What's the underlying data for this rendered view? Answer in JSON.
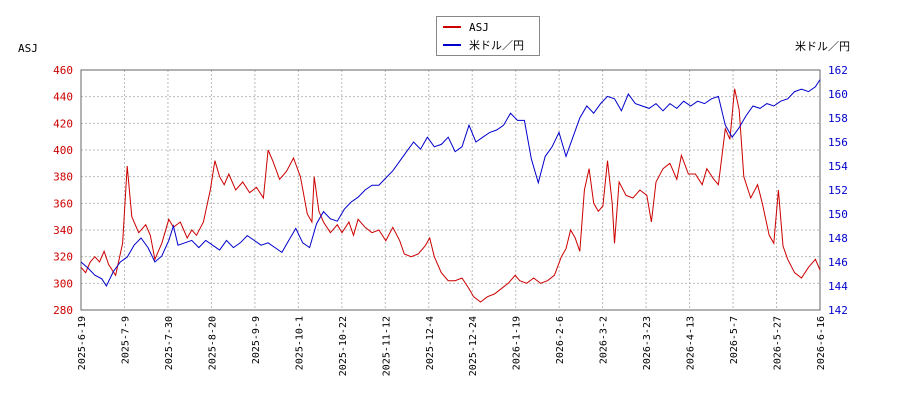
{
  "chart_data": {
    "type": "line",
    "left_axis_title": "ASJ",
    "right_axis_title": "米ドル／円",
    "left_ylim": [
      280,
      460
    ],
    "left_yticks": [
      280,
      300,
      320,
      340,
      360,
      380,
      400,
      420,
      440,
      460
    ],
    "right_ylim": [
      142,
      162
    ],
    "right_yticks": [
      142,
      144,
      146,
      148,
      150,
      152,
      154,
      156,
      158,
      160,
      162
    ],
    "x_ticks": [
      "2025-6-19",
      "2025-7-9",
      "2025-7-30",
      "2025-8-20",
      "2025-9-9",
      "2025-10-1",
      "2025-10-22",
      "2025-11-12",
      "2025-12-4",
      "2025-12-24",
      "2026-1-19",
      "2026-2-6",
      "2026-3-2",
      "2026-3-23",
      "2026-4-13",
      "2026-5-7",
      "2026-5-27",
      "2026-6-16"
    ],
    "grid": true,
    "legend_position": "top-center",
    "series": [
      {
        "name": "ASJ",
        "axis": "left",
        "color": "#cc0000",
        "points": [
          [
            0,
            312
          ],
          [
            0.2,
            308
          ],
          [
            0.4,
            316
          ],
          [
            0.6,
            320
          ],
          [
            0.8,
            316
          ],
          [
            1.0,
            324
          ],
          [
            1.2,
            314
          ],
          [
            1.5,
            306
          ],
          [
            1.8,
            330
          ],
          [
            2.0,
            388
          ],
          [
            2.2,
            350
          ],
          [
            2.5,
            338
          ],
          [
            2.8,
            344
          ],
          [
            3.0,
            336
          ],
          [
            3.2,
            318
          ],
          [
            3.5,
            330
          ],
          [
            3.8,
            348
          ],
          [
            4.0,
            342
          ],
          [
            4.3,
            346
          ],
          [
            4.6,
            334
          ],
          [
            4.8,
            340
          ],
          [
            5.0,
            336
          ],
          [
            5.3,
            346
          ],
          [
            5.6,
            370
          ],
          [
            5.8,
            392
          ],
          [
            6.0,
            380
          ],
          [
            6.2,
            374
          ],
          [
            6.4,
            382
          ],
          [
            6.7,
            370
          ],
          [
            7.0,
            376
          ],
          [
            7.3,
            368
          ],
          [
            7.6,
            372
          ],
          [
            7.9,
            364
          ],
          [
            8.1,
            400
          ],
          [
            8.3,
            392
          ],
          [
            8.6,
            378
          ],
          [
            8.9,
            384
          ],
          [
            9.2,
            394
          ],
          [
            9.5,
            380
          ],
          [
            9.8,
            352
          ],
          [
            10.0,
            346
          ],
          [
            10.1,
            380
          ],
          [
            10.3,
            354
          ],
          [
            10.5,
            346
          ],
          [
            10.8,
            338
          ],
          [
            11.1,
            344
          ],
          [
            11.3,
            338
          ],
          [
            11.6,
            346
          ],
          [
            11.8,
            336
          ],
          [
            12.0,
            348
          ],
          [
            12.3,
            342
          ],
          [
            12.6,
            338
          ],
          [
            12.9,
            340
          ],
          [
            13.2,
            332
          ],
          [
            13.5,
            342
          ],
          [
            13.8,
            332
          ],
          [
            14.0,
            322
          ],
          [
            14.3,
            320
          ],
          [
            14.6,
            322
          ],
          [
            14.9,
            328
          ],
          [
            15.1,
            334
          ],
          [
            15.3,
            320
          ],
          [
            15.6,
            308
          ],
          [
            15.9,
            302
          ],
          [
            16.2,
            302
          ],
          [
            16.5,
            304
          ],
          [
            16.8,
            296
          ],
          [
            17.0,
            290
          ],
          [
            17.3,
            286
          ],
          [
            17.6,
            290
          ],
          [
            17.9,
            292
          ],
          [
            18.2,
            296
          ],
          [
            18.5,
            300
          ],
          [
            18.8,
            306
          ],
          [
            19.0,
            302
          ],
          [
            19.3,
            300
          ],
          [
            19.6,
            304
          ],
          [
            19.9,
            300
          ],
          [
            20.2,
            302
          ],
          [
            20.5,
            306
          ],
          [
            20.8,
            320
          ],
          [
            21.0,
            326
          ],
          [
            21.2,
            340
          ],
          [
            21.4,
            334
          ],
          [
            21.6,
            324
          ],
          [
            21.8,
            370
          ],
          [
            22.0,
            386
          ],
          [
            22.2,
            360
          ],
          [
            22.4,
            354
          ],
          [
            22.6,
            358
          ],
          [
            22.8,
            392
          ],
          [
            23.0,
            360
          ],
          [
            23.1,
            330
          ],
          [
            23.3,
            376
          ],
          [
            23.6,
            366
          ],
          [
            23.9,
            364
          ],
          [
            24.2,
            370
          ],
          [
            24.5,
            366
          ],
          [
            24.7,
            346
          ],
          [
            24.9,
            376
          ],
          [
            25.2,
            386
          ],
          [
            25.5,
            390
          ],
          [
            25.8,
            378
          ],
          [
            26.0,
            396
          ],
          [
            26.3,
            382
          ],
          [
            26.6,
            382
          ],
          [
            26.9,
            374
          ],
          [
            27.1,
            386
          ],
          [
            27.4,
            378
          ],
          [
            27.6,
            374
          ],
          [
            27.9,
            416
          ],
          [
            28.1,
            408
          ],
          [
            28.3,
            446
          ],
          [
            28.5,
            430
          ],
          [
            28.7,
            380
          ],
          [
            29.0,
            364
          ],
          [
            29.3,
            374
          ],
          [
            29.5,
            360
          ],
          [
            29.8,
            336
          ],
          [
            30.0,
            330
          ],
          [
            30.2,
            370
          ],
          [
            30.4,
            328
          ],
          [
            30.6,
            318
          ],
          [
            30.9,
            308
          ],
          [
            31.2,
            304
          ],
          [
            31.5,
            312
          ],
          [
            31.8,
            318
          ],
          [
            32.0,
            310
          ]
        ]
      },
      {
        "name": "米ドル／円",
        "axis": "right",
        "color": "#0000cc",
        "points": [
          [
            0,
            146.0
          ],
          [
            0.3,
            145.5
          ],
          [
            0.6,
            144.9
          ],
          [
            0.9,
            144.6
          ],
          [
            1.1,
            144.0
          ],
          [
            1.4,
            145.2
          ],
          [
            1.7,
            146.0
          ],
          [
            2.0,
            146.4
          ],
          [
            2.3,
            147.4
          ],
          [
            2.6,
            148.0
          ],
          [
            2.9,
            147.2
          ],
          [
            3.2,
            146.0
          ],
          [
            3.5,
            146.5
          ],
          [
            3.8,
            147.8
          ],
          [
            4.0,
            149.0
          ],
          [
            4.2,
            147.4
          ],
          [
            4.5,
            147.6
          ],
          [
            4.8,
            147.8
          ],
          [
            5.1,
            147.2
          ],
          [
            5.4,
            147.8
          ],
          [
            5.7,
            147.4
          ],
          [
            6.0,
            147.0
          ],
          [
            6.3,
            147.8
          ],
          [
            6.6,
            147.2
          ],
          [
            6.9,
            147.6
          ],
          [
            7.2,
            148.2
          ],
          [
            7.5,
            147.8
          ],
          [
            7.8,
            147.4
          ],
          [
            8.1,
            147.6
          ],
          [
            8.4,
            147.2
          ],
          [
            8.7,
            146.8
          ],
          [
            9.0,
            147.8
          ],
          [
            9.3,
            148.8
          ],
          [
            9.6,
            147.6
          ],
          [
            9.9,
            147.2
          ],
          [
            10.2,
            149.2
          ],
          [
            10.5,
            150.2
          ],
          [
            10.8,
            149.6
          ],
          [
            11.1,
            149.4
          ],
          [
            11.4,
            150.4
          ],
          [
            11.7,
            151.0
          ],
          [
            12.0,
            151.4
          ],
          [
            12.3,
            152.0
          ],
          [
            12.6,
            152.4
          ],
          [
            12.9,
            152.4
          ],
          [
            13.2,
            153.0
          ],
          [
            13.5,
            153.6
          ],
          [
            13.8,
            154.4
          ],
          [
            14.1,
            155.2
          ],
          [
            14.4,
            156.0
          ],
          [
            14.7,
            155.4
          ],
          [
            15.0,
            156.4
          ],
          [
            15.3,
            155.6
          ],
          [
            15.6,
            155.8
          ],
          [
            15.9,
            156.4
          ],
          [
            16.2,
            155.2
          ],
          [
            16.5,
            155.6
          ],
          [
            16.8,
            157.4
          ],
          [
            17.1,
            156.0
          ],
          [
            17.4,
            156.4
          ],
          [
            17.7,
            156.8
          ],
          [
            18.0,
            157.0
          ],
          [
            18.3,
            157.4
          ],
          [
            18.6,
            158.4
          ],
          [
            18.9,
            157.8
          ],
          [
            19.2,
            157.8
          ],
          [
            19.5,
            154.6
          ],
          [
            19.8,
            152.6
          ],
          [
            20.1,
            154.8
          ],
          [
            20.4,
            155.6
          ],
          [
            20.7,
            156.8
          ],
          [
            21.0,
            154.8
          ],
          [
            21.3,
            156.4
          ],
          [
            21.6,
            158.0
          ],
          [
            21.9,
            159.0
          ],
          [
            22.2,
            158.4
          ],
          [
            22.5,
            159.2
          ],
          [
            22.8,
            159.8
          ],
          [
            23.1,
            159.6
          ],
          [
            23.4,
            158.6
          ],
          [
            23.7,
            160.0
          ],
          [
            24.0,
            159.2
          ],
          [
            24.3,
            159.0
          ],
          [
            24.6,
            158.8
          ],
          [
            24.9,
            159.2
          ],
          [
            25.2,
            158.6
          ],
          [
            25.5,
            159.2
          ],
          [
            25.8,
            158.8
          ],
          [
            26.1,
            159.4
          ],
          [
            26.4,
            159.0
          ],
          [
            26.7,
            159.4
          ],
          [
            27.0,
            159.2
          ],
          [
            27.3,
            159.6
          ],
          [
            27.6,
            159.8
          ],
          [
            27.9,
            157.4
          ],
          [
            28.2,
            156.4
          ],
          [
            28.5,
            157.2
          ],
          [
            28.8,
            158.2
          ],
          [
            29.1,
            159.0
          ],
          [
            29.4,
            158.8
          ],
          [
            29.7,
            159.2
          ],
          [
            30.0,
            159.0
          ],
          [
            30.3,
            159.4
          ],
          [
            30.6,
            159.6
          ],
          [
            30.9,
            160.2
          ],
          [
            31.2,
            160.4
          ],
          [
            31.5,
            160.2
          ],
          [
            31.8,
            160.6
          ],
          [
            32.0,
            161.2
          ]
        ]
      }
    ]
  }
}
